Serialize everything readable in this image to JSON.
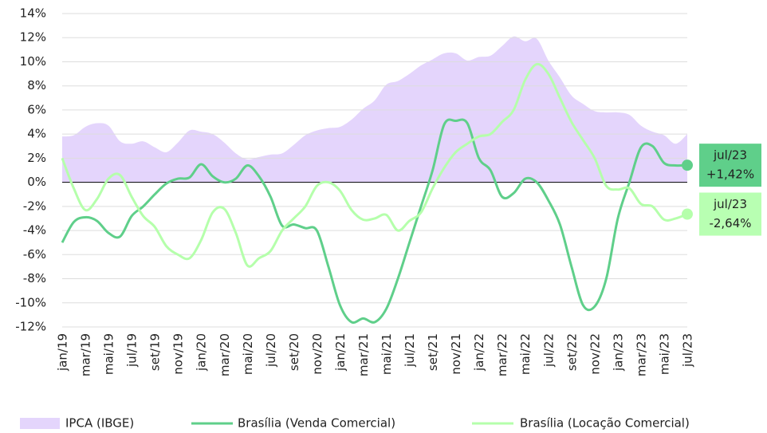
{
  "chart_data": {
    "type": "line",
    "categories": [
      "jan/19",
      null,
      "mar/19",
      null,
      "mai/19",
      null,
      "jul/19",
      null,
      "set/19",
      null,
      "nov/19",
      null,
      "jan/20",
      null,
      "mar/20",
      null,
      "mai/20",
      null,
      "jul/20",
      null,
      "set/20",
      null,
      "nov/20",
      null,
      "jan/21",
      null,
      "mar/21",
      null,
      "mai/21",
      null,
      "jul/21",
      null,
      "set/21",
      null,
      "nov/21",
      null,
      "jan/22",
      null,
      "mar/22",
      null,
      "mai/22",
      null,
      "jul/22",
      null,
      "set/22",
      null,
      "nov/22",
      null,
      "jan/23",
      null,
      "mar/23",
      null,
      "mai/23",
      null,
      "jul/23"
    ],
    "ylim": [
      -12,
      14
    ],
    "yticks": [
      {
        "value": -12,
        "label": "-12%"
      },
      {
        "value": -10,
        "label": "-10%"
      },
      {
        "value": -8,
        "label": "-8%"
      },
      {
        "value": -6,
        "label": "-6%"
      },
      {
        "value": -4,
        "label": "-4%"
      },
      {
        "value": -2,
        "label": "-2%"
      },
      {
        "value": 0,
        "label": "0%"
      },
      {
        "value": 2,
        "label": "2%"
      },
      {
        "value": 4,
        "label": "4%"
      },
      {
        "value": 6,
        "label": "6%"
      },
      {
        "value": 8,
        "label": "8%"
      },
      {
        "value": 10,
        "label": "10%"
      },
      {
        "value": 12,
        "label": "12%"
      },
      {
        "value": 14,
        "label": "14%"
      }
    ],
    "grid": true,
    "legend": "bottom",
    "series": [
      {
        "name": "IPCA (IBGE)",
        "kind": "area",
        "color": "#e4d5fc",
        "values": [
          3.8,
          3.9,
          4.6,
          4.9,
          4.7,
          3.4,
          3.2,
          3.4,
          2.9,
          2.5,
          3.3,
          4.3,
          4.2,
          4.0,
          3.3,
          2.4,
          1.9,
          2.1,
          2.3,
          2.4,
          3.1,
          3.9,
          4.3,
          4.5,
          4.6,
          5.2,
          6.1,
          6.8,
          8.1,
          8.4,
          9.0,
          9.7,
          10.2,
          10.7,
          10.7,
          10.1,
          10.4,
          10.5,
          11.3,
          12.1,
          11.7,
          11.9,
          10.1,
          8.7,
          7.2,
          6.5,
          5.9,
          5.8,
          5.8,
          5.6,
          4.7,
          4.2,
          3.9,
          3.2,
          4.0
        ]
      },
      {
        "name": "Brasília (Venda Comercial)",
        "kind": "line",
        "color": "#5fcf8a",
        "label_color": "#5fcf8a",
        "values": [
          -5.0,
          -3.3,
          -2.9,
          -3.2,
          -4.2,
          -4.5,
          -2.8,
          -2.0,
          -1.0,
          -0.1,
          0.3,
          0.4,
          1.5,
          0.5,
          0.0,
          0.3,
          1.4,
          0.5,
          -1.2,
          -3.6,
          -3.5,
          -3.8,
          -4.0,
          -7.0,
          -10.2,
          -11.6,
          -11.3,
          -11.6,
          -10.5,
          -8.0,
          -5.0,
          -2.0,
          1.0,
          4.8,
          5.1,
          4.9,
          2.0,
          1.0,
          -1.2,
          -0.9,
          0.3,
          0.0,
          -1.5,
          -3.5,
          -7.0,
          -10.2,
          -10.3,
          -8.0,
          -3.0,
          0.0,
          2.9,
          3.0,
          1.6,
          1.4,
          1.42
        ],
        "value_labels": [
          null,
          null,
          null,
          null,
          null,
          null,
          null,
          null,
          null,
          null,
          null,
          null,
          null,
          null,
          null,
          null,
          null,
          null,
          null,
          null,
          null,
          null,
          null,
          null,
          null,
          null,
          null,
          null,
          null,
          null,
          null,
          null,
          null,
          null,
          null,
          null,
          null,
          null,
          null,
          null,
          null,
          null,
          null,
          null,
          null,
          null,
          null,
          null,
          null,
          null,
          null,
          null,
          null,
          null,
          "+1,42%"
        ]
      },
      {
        "name": "Brasília (Locação Comercial)",
        "kind": "line",
        "color": "#b5ffab",
        "label_color": "#b8ffb2",
        "values": [
          2.0,
          -0.5,
          -2.3,
          -1.4,
          0.3,
          0.6,
          -1.2,
          -2.8,
          -3.7,
          -5.3,
          -6.0,
          -6.3,
          -4.8,
          -2.5,
          -2.2,
          -4.2,
          -6.9,
          -6.3,
          -5.7,
          -4.0,
          -3.0,
          -2.0,
          -0.3,
          0.0,
          -0.7,
          -2.3,
          -3.1,
          -3.0,
          -2.7,
          -4.0,
          -3.2,
          -2.5,
          -0.5,
          1.2,
          2.5,
          3.2,
          3.8,
          4.0,
          5.0,
          6.0,
          8.5,
          9.8,
          9.0,
          7.0,
          5.0,
          3.5,
          2.0,
          -0.3,
          -0.6,
          -0.5,
          -1.8,
          -2.0,
          -3.1,
          -3.0,
          -2.64
        ],
        "value_labels": [
          null,
          null,
          null,
          null,
          null,
          null,
          null,
          null,
          null,
          null,
          null,
          null,
          null,
          null,
          null,
          null,
          null,
          null,
          null,
          null,
          null,
          null,
          null,
          null,
          null,
          null,
          null,
          null,
          null,
          null,
          null,
          null,
          null,
          null,
          null,
          null,
          null,
          null,
          null,
          null,
          null,
          null,
          null,
          null,
          null,
          null,
          null,
          null,
          null,
          null,
          null,
          null,
          null,
          null,
          "-2,64%"
        ]
      }
    ]
  }
}
